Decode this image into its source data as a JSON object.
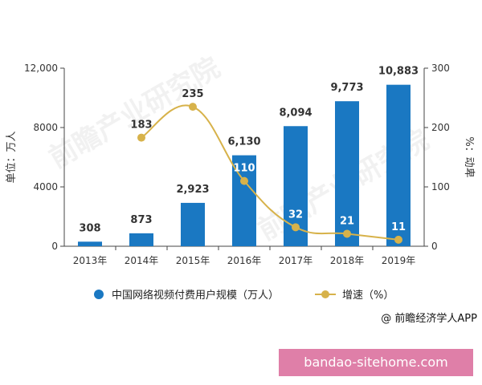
{
  "chart_data": {
    "type": "bar",
    "categories": [
      "2013年",
      "2014年",
      "2015年",
      "2016年",
      "2017年",
      "2018年",
      "2019年"
    ],
    "series": [
      {
        "name": "中国网络视频付费用户规模（万人）",
        "type": "bar",
        "axis": "left",
        "values": [
          308,
          873,
          2923,
          6130,
          8094,
          9773,
          10883
        ],
        "labels": [
          "308",
          "873",
          "2,923",
          "6,130",
          "8,094",
          "9,773",
          "10,883"
        ],
        "color": "#1a78c2"
      },
      {
        "name": "增速（%）",
        "type": "line",
        "axis": "right",
        "values": [
          null,
          183,
          235,
          110,
          32,
          21,
          11
        ],
        "labels": [
          "",
          "183",
          "235",
          "110",
          "32",
          "21",
          "11"
        ],
        "color": "#d7b24a"
      }
    ],
    "y_left": {
      "label": "单位：万人",
      "ylim": [
        0,
        12000
      ],
      "ticks": [
        0,
        4000,
        8000,
        12000
      ],
      "tick_labels": [
        "0",
        "4000",
        "8000",
        "12,000"
      ]
    },
    "y_right": {
      "label": "%：动卑",
      "ylim": [
        0,
        300
      ],
      "ticks": [
        0,
        100,
        200,
        300
      ],
      "tick_labels": [
        "0",
        "100",
        "200",
        "300"
      ]
    },
    "grid": false,
    "legend_position": "bottom"
  },
  "legend": {
    "bar_label": "中国网络视频付费用户规模（万人）",
    "line_label": "增速（%）"
  },
  "source": "@ 前瞻经济学人APP",
  "watermark": {
    "box_text": "bandao-sitehome.com",
    "logo_text": "前瞻产业研究院"
  },
  "colors": {
    "bar": "#1a78c2",
    "line": "#d7b24a",
    "axis": "#333333"
  }
}
